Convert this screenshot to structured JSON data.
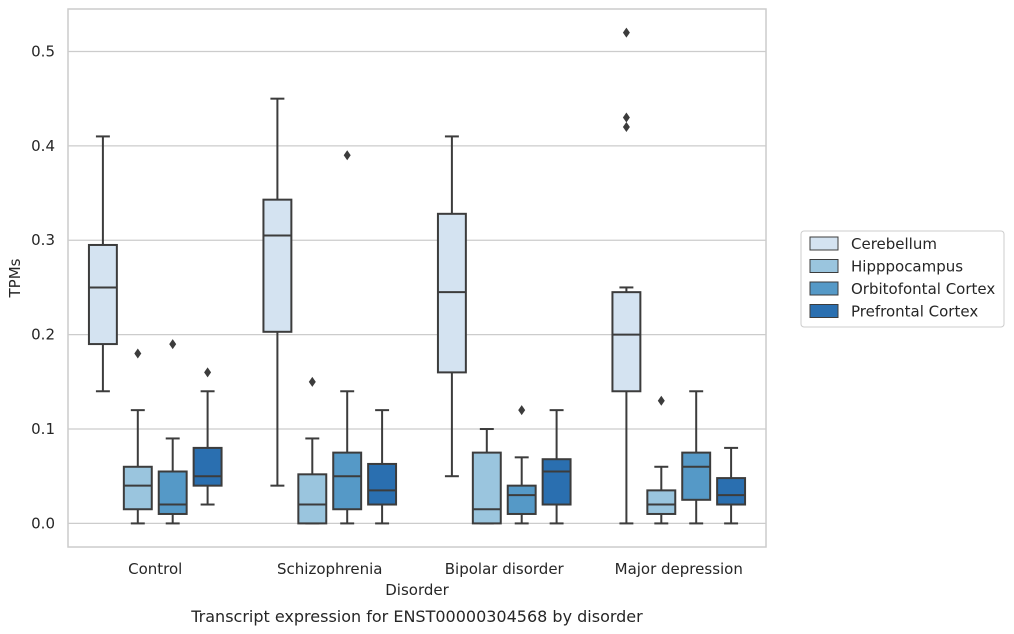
{
  "caption": "Transcript expression for ENST00000304568 by disorder",
  "chart_data": {
    "type": "boxplot",
    "xlabel": "Disorder",
    "ylabel": "TPMs",
    "ylim": [
      -0.025,
      0.545
    ],
    "yticks": [
      0.0,
      0.1,
      0.2,
      0.3,
      0.4,
      0.5
    ],
    "ytick_labels": [
      "0.0",
      "0.1",
      "0.2",
      "0.3",
      "0.4",
      "0.5"
    ],
    "grid": "horizontal",
    "legend_position": "right",
    "categories": [
      "Control",
      "Schizophrenia",
      "Bipolar disorder",
      "Major depression"
    ],
    "series": [
      {
        "name": "Cerebellum",
        "color": "#d4e3f1",
        "boxes": [
          {
            "whislo": 0.14,
            "q1": 0.19,
            "med": 0.25,
            "q3": 0.295,
            "whishi": 0.41,
            "fliers": []
          },
          {
            "whislo": 0.04,
            "q1": 0.203,
            "med": 0.305,
            "q3": 0.343,
            "whishi": 0.45,
            "fliers": []
          },
          {
            "whislo": 0.05,
            "q1": 0.16,
            "med": 0.245,
            "q3": 0.328,
            "whishi": 0.41,
            "fliers": []
          },
          {
            "whislo": 0.0,
            "q1": 0.14,
            "med": 0.2,
            "q3": 0.245,
            "whishi": 0.25,
            "fliers": [
              0.42,
              0.43,
              0.52
            ]
          }
        ]
      },
      {
        "name": "Hipppocampus",
        "color": "#9ac5de",
        "boxes": [
          {
            "whislo": 0.0,
            "q1": 0.015,
            "med": 0.04,
            "q3": 0.06,
            "whishi": 0.12,
            "fliers": [
              0.18
            ]
          },
          {
            "whislo": 0.0,
            "q1": 0.0,
            "med": 0.02,
            "q3": 0.052,
            "whishi": 0.09,
            "fliers": [
              0.15
            ]
          },
          {
            "whislo": 0.0,
            "q1": 0.0,
            "med": 0.015,
            "q3": 0.075,
            "whishi": 0.1,
            "fliers": []
          },
          {
            "whislo": 0.0,
            "q1": 0.01,
            "med": 0.02,
            "q3": 0.035,
            "whishi": 0.06,
            "fliers": [
              0.13
            ]
          }
        ]
      },
      {
        "name": "Orbitofontal Cortex",
        "color": "#5599c7",
        "boxes": [
          {
            "whislo": 0.0,
            "q1": 0.01,
            "med": 0.02,
            "q3": 0.055,
            "whishi": 0.09,
            "fliers": [
              0.19
            ]
          },
          {
            "whislo": 0.0,
            "q1": 0.015,
            "med": 0.05,
            "q3": 0.075,
            "whishi": 0.14,
            "fliers": [
              0.39
            ]
          },
          {
            "whislo": 0.0,
            "q1": 0.01,
            "med": 0.03,
            "q3": 0.04,
            "whishi": 0.07,
            "fliers": [
              0.12
            ]
          },
          {
            "whislo": 0.0,
            "q1": 0.025,
            "med": 0.06,
            "q3": 0.075,
            "whishi": 0.14,
            "fliers": []
          }
        ]
      },
      {
        "name": "Prefrontal Cortex",
        "color": "#2a6fb0",
        "boxes": [
          {
            "whislo": 0.02,
            "q1": 0.04,
            "med": 0.05,
            "q3": 0.08,
            "whishi": 0.14,
            "fliers": [
              0.16
            ]
          },
          {
            "whislo": 0.0,
            "q1": 0.02,
            "med": 0.035,
            "q3": 0.063,
            "whishi": 0.12,
            "fliers": []
          },
          {
            "whislo": 0.0,
            "q1": 0.02,
            "med": 0.055,
            "q3": 0.068,
            "whishi": 0.12,
            "fliers": []
          },
          {
            "whislo": 0.0,
            "q1": 0.02,
            "med": 0.03,
            "q3": 0.048,
            "whishi": 0.08,
            "fliers": []
          }
        ]
      }
    ]
  }
}
